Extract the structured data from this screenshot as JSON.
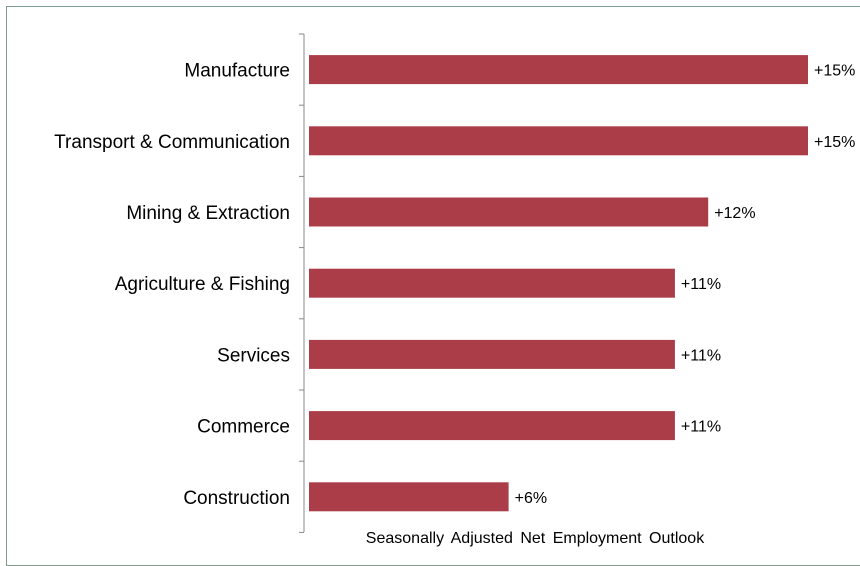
{
  "chart_data": {
    "type": "bar",
    "orientation": "horizontal",
    "categories": [
      "Manufacture",
      "Transport & Communication",
      "Mining & Extraction",
      "Agriculture & Fishing",
      "Services",
      "Commerce",
      "Construction"
    ],
    "values": [
      15,
      15,
      12,
      11,
      11,
      11,
      6
    ],
    "value_labels": [
      "+15%",
      "+15%",
      "+12%",
      "+11%",
      "+11%",
      "+11%",
      "+6%"
    ],
    "xlabel": "Seasonally Adjusted Net Employment Outlook",
    "ylabel": "",
    "xlim": [
      0,
      15
    ],
    "grid": false,
    "legend": "none",
    "bar_color": "#ab3d49"
  }
}
